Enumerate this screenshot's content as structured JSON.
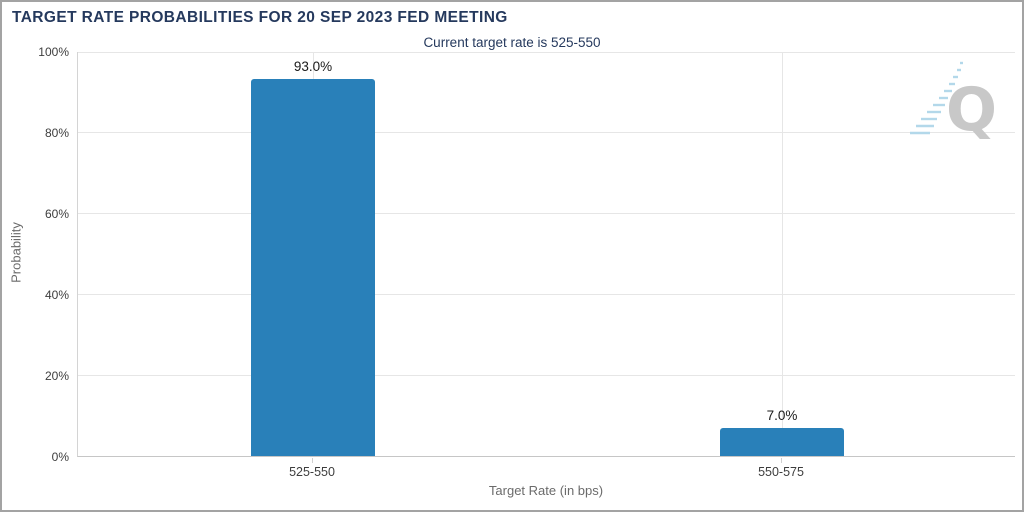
{
  "header": {
    "title": "TARGET RATE PROBABILITIES FOR 20 SEP 2023 FED MEETING",
    "subtitle": "Current target rate is 525-550"
  },
  "watermark": {
    "letter": "Q"
  },
  "chart_data": {
    "type": "bar",
    "title": "TARGET RATE PROBABILITIES FOR 20 SEP 2023 FED MEETING",
    "subtitle": "Current target rate is 525-550",
    "categories": [
      "525-550",
      "550-575"
    ],
    "values": [
      93.0,
      7.0
    ],
    "bar_labels": [
      "93.0%",
      "7.0%"
    ],
    "xlabel": "Target Rate (in bps)",
    "ylabel": "Probability",
    "ylim": [
      0,
      100
    ],
    "ytick_labels": [
      "0%",
      "20%",
      "40%",
      "60%",
      "80%",
      "100%"
    ],
    "grid": true,
    "legend_position": "none"
  },
  "colors": {
    "bar": "#2980b9",
    "heading_navy": "#25395d",
    "grid_line": "#e6e6e6",
    "axis_line": "#c6c6c6",
    "tick_text": "#3d3d3d",
    "muted_text": "#6b6b6b",
    "value_text": "#1a1a1a",
    "watermark_gray": "#c8c8c8",
    "watermark_blue": "#b3d8ea",
    "frame_border": "#a3a3a3"
  }
}
